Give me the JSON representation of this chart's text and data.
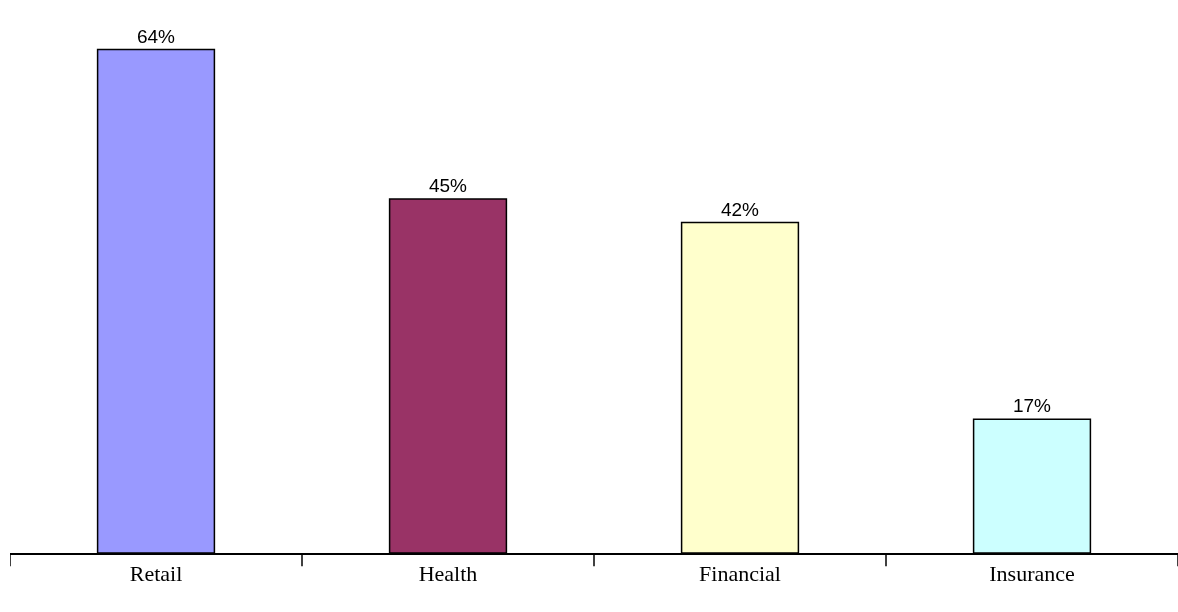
{
  "chart_data": {
    "type": "bar",
    "categories": [
      "Retail",
      "Health",
      "Financial",
      "Insurance"
    ],
    "values": [
      64,
      45,
      42,
      17
    ],
    "colors": [
      "#9999ff",
      "#993366",
      "#ffffcc",
      "#ccffff"
    ],
    "value_labels": [
      "64%",
      "45%",
      "42%",
      "17%"
    ]
  }
}
